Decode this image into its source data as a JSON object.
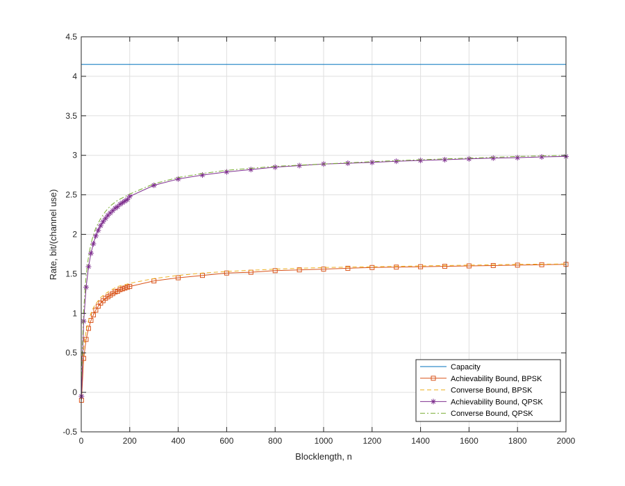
{
  "chart_data": {
    "type": "line",
    "xlabel": "Blocklength, n",
    "ylabel": "Rate, bit/(channel use)",
    "xlim": [
      0,
      2000
    ],
    "ylim": [
      -0.5,
      4.5
    ],
    "xticks": [
      0,
      200,
      400,
      600,
      800,
      1000,
      1200,
      1400,
      1600,
      1800,
      2000
    ],
    "yticks": [
      -0.5,
      0,
      0.5,
      1,
      1.5,
      2,
      2.5,
      3,
      3.5,
      4,
      4.5
    ],
    "xtick_labels": [
      "0",
      "200",
      "400",
      "600",
      "800",
      "1000",
      "1200",
      "1400",
      "1600",
      "1800",
      "2000"
    ],
    "ytick_labels": [
      "-0.5",
      "0",
      "0.5",
      "1",
      "1.5",
      "2",
      "2.5",
      "3",
      "3.5",
      "4",
      "4.5"
    ],
    "grid": true,
    "legend_position": "bottom-right",
    "series": [
      {
        "name": "Capacity",
        "color": "#0072bd",
        "line": "solid",
        "marker": "none",
        "x": [
          0,
          2000
        ],
        "y": [
          4.15,
          4.15
        ]
      },
      {
        "name": "Achievability Bound, BPSK",
        "color": "#d95319",
        "line": "solid",
        "marker": "square",
        "x": [
          1,
          10,
          20,
          30,
          40,
          50,
          60,
          70,
          80,
          90,
          100,
          110,
          120,
          130,
          140,
          150,
          160,
          170,
          180,
          190,
          200,
          300,
          400,
          500,
          600,
          700,
          800,
          900,
          1000,
          1100,
          1200,
          1300,
          1400,
          1500,
          1600,
          1700,
          1800,
          1900,
          2000
        ],
        "y": [
          -0.1,
          0.43,
          0.67,
          0.81,
          0.91,
          0.98,
          1.04,
          1.09,
          1.13,
          1.16,
          1.19,
          1.21,
          1.23,
          1.25,
          1.27,
          1.28,
          1.3,
          1.31,
          1.32,
          1.33,
          1.34,
          1.41,
          1.45,
          1.48,
          1.51,
          1.52,
          1.54,
          1.55,
          1.56,
          1.57,
          1.58,
          1.585,
          1.59,
          1.595,
          1.6,
          1.605,
          1.61,
          1.615,
          1.62
        ]
      },
      {
        "name": "Converse Bound, BPSK",
        "color": "#edb120",
        "line": "dashed",
        "marker": "none",
        "x": [
          1,
          10,
          20,
          30,
          40,
          50,
          60,
          80,
          100,
          120,
          150,
          200,
          300,
          400,
          500,
          600,
          800,
          1000,
          1200,
          1400,
          1600,
          1800,
          2000
        ],
        "y": [
          0.1,
          0.55,
          0.78,
          0.91,
          1.0,
          1.07,
          1.12,
          1.2,
          1.25,
          1.29,
          1.34,
          1.38,
          1.44,
          1.48,
          1.51,
          1.53,
          1.56,
          1.58,
          1.59,
          1.6,
          1.61,
          1.62,
          1.625
        ]
      },
      {
        "name": "Achievability Bound, QPSK",
        "color": "#7e2f8e",
        "line": "solid",
        "marker": "star",
        "x": [
          1,
          10,
          20,
          30,
          40,
          50,
          60,
          70,
          80,
          90,
          100,
          110,
          120,
          130,
          140,
          150,
          160,
          170,
          180,
          190,
          200,
          300,
          400,
          500,
          600,
          700,
          800,
          900,
          1000,
          1100,
          1200,
          1300,
          1400,
          1500,
          1600,
          1700,
          1800,
          1900,
          2000
        ],
        "y": [
          -0.05,
          0.9,
          1.33,
          1.59,
          1.76,
          1.88,
          1.98,
          2.05,
          2.11,
          2.16,
          2.2,
          2.24,
          2.27,
          2.3,
          2.33,
          2.35,
          2.38,
          2.4,
          2.42,
          2.44,
          2.48,
          2.62,
          2.7,
          2.75,
          2.79,
          2.82,
          2.85,
          2.87,
          2.89,
          2.9,
          2.91,
          2.925,
          2.935,
          2.945,
          2.955,
          2.965,
          2.97,
          2.98,
          2.985
        ]
      },
      {
        "name": "Converse Bound, QPSK",
        "color": "#77ac30",
        "line": "dashdot",
        "marker": "none",
        "x": [
          1,
          10,
          20,
          30,
          40,
          50,
          60,
          80,
          100,
          120,
          150,
          200,
          300,
          400,
          500,
          600,
          800,
          1000,
          1200,
          1400,
          1600,
          1800,
          2000
        ],
        "y": [
          0.2,
          1.05,
          1.48,
          1.72,
          1.88,
          1.99,
          2.08,
          2.2,
          2.29,
          2.36,
          2.43,
          2.51,
          2.64,
          2.72,
          2.77,
          2.81,
          2.86,
          2.89,
          2.92,
          2.945,
          2.965,
          2.985,
          3.0
        ]
      }
    ]
  }
}
